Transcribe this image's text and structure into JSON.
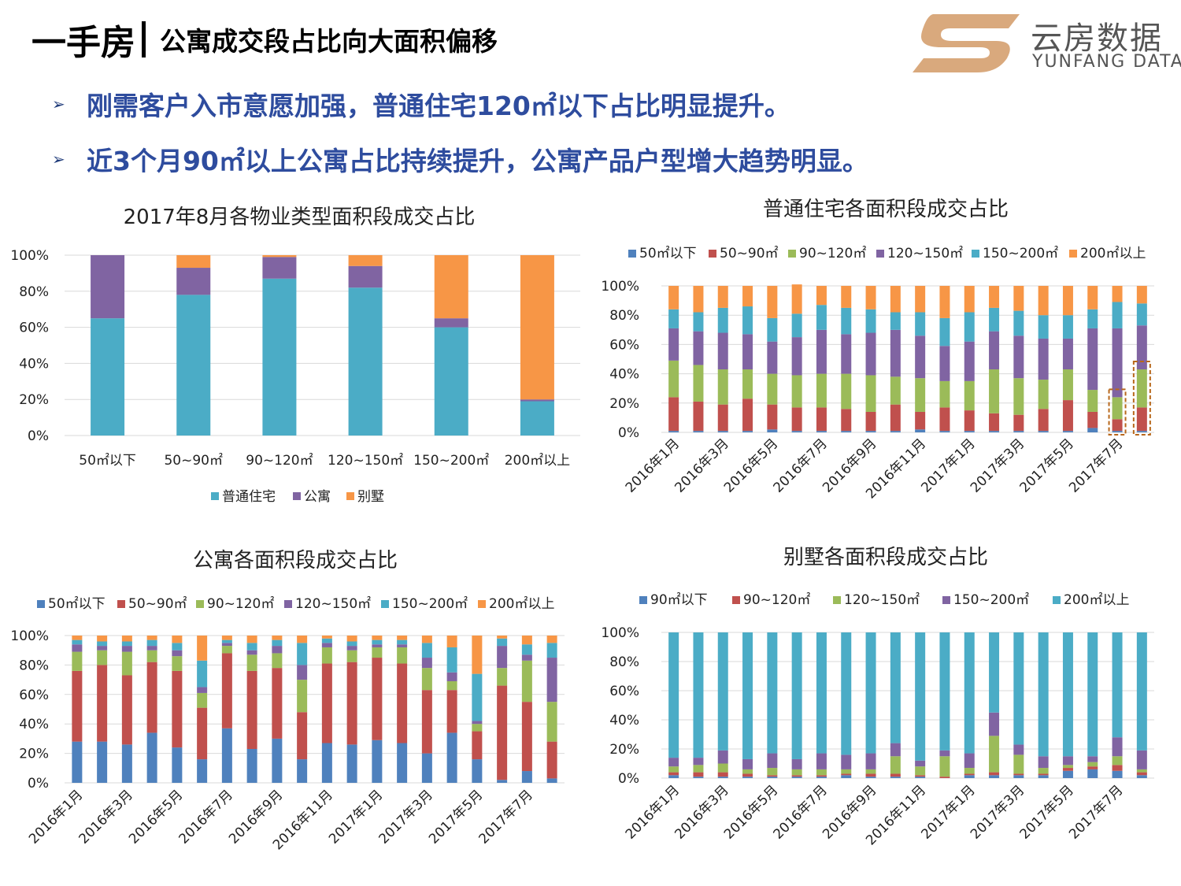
{
  "header": {
    "title_big": "一手房",
    "title_sub": "公寓成交段占比向大面积偏移"
  },
  "logo": {
    "cn": "云房数据",
    "en": "YUNFANG DATA",
    "icon": "yunfang-s-logo-icon",
    "color": "#D9A97D"
  },
  "bullets": [
    {
      "icon": "arrow-bullet-icon",
      "text": "刚需客户入市意愿加强，普通住宅120㎡以下占比明显提升。"
    },
    {
      "icon": "arrow-bullet-icon",
      "text": "近3个月90㎡以上公寓占比持续提升，公寓产品户型增大趋势明显。"
    }
  ],
  "chart_data": [
    {
      "id": "aug2017",
      "type": "bar",
      "stacked": true,
      "title": "2017年8月各物业类型面积段成交占比",
      "categories": [
        "50㎡以下",
        "50~90㎡",
        "90~120㎡",
        "120~150㎡",
        "150~200㎡",
        "200㎡以上"
      ],
      "series": [
        {
          "name": "普通住宅",
          "color": "#4BACC6",
          "values": [
            65,
            78,
            87,
            82,
            60,
            19
          ]
        },
        {
          "name": "公寓",
          "color": "#8064A2",
          "values": [
            35,
            15,
            12,
            12,
            5,
            1
          ]
        },
        {
          "name": "别墅",
          "color": "#F79646",
          "values": [
            0,
            7,
            1,
            6,
            35,
            80
          ]
        }
      ],
      "yticks": [
        "0%",
        "20%",
        "40%",
        "60%",
        "80%",
        "100%"
      ],
      "ylim": [
        0,
        100
      ],
      "legend": "bottom",
      "grid": true
    },
    {
      "id": "residential",
      "type": "bar",
      "stacked": true,
      "title": "普通住宅各面积段成交占比",
      "x": [
        "2016年1月",
        "2016年2月",
        "2016年3月",
        "2016年4月",
        "2016年5月",
        "2016年6月",
        "2016年7月",
        "2016年8月",
        "2016年9月",
        "2016年10月",
        "2016年11月",
        "2016年12月",
        "2017年1月",
        "2017年2月",
        "2017年3月",
        "2017年4月",
        "2017年5月",
        "2017年6月",
        "2017年7月",
        "2017年8月"
      ],
      "xticks": [
        "2016年1月",
        "2016年3月",
        "2016年5月",
        "2016年7月",
        "2016年9月",
        "2016年11月",
        "2017年1月",
        "2017年3月",
        "2017年5月",
        "2017年7月"
      ],
      "series": [
        {
          "name": "50㎡以下",
          "color": "#4F81BD",
          "values": [
            1,
            1,
            1,
            1,
            2,
            1,
            1,
            1,
            1,
            1,
            2,
            1,
            1,
            1,
            1,
            1,
            1,
            3,
            1,
            1
          ]
        },
        {
          "name": "50~90㎡",
          "color": "#C0504D",
          "values": [
            23,
            20,
            18,
            22,
            17,
            16,
            16,
            15,
            13,
            18,
            12,
            16,
            14,
            12,
            11,
            15,
            21,
            11,
            8,
            16
          ]
        },
        {
          "name": "90~120㎡",
          "color": "#9BBB59",
          "values": [
            25,
            25,
            24,
            20,
            21,
            22,
            23,
            24,
            25,
            19,
            23,
            18,
            20,
            30,
            25,
            20,
            21,
            15,
            15,
            26
          ]
        },
        {
          "name": "120~150㎡",
          "color": "#8064A2",
          "values": [
            22,
            23,
            25,
            24,
            22,
            26,
            30,
            27,
            29,
            32,
            29,
            24,
            27,
            26,
            29,
            28,
            21,
            42,
            47,
            30
          ]
        },
        {
          "name": "150~200㎡",
          "color": "#4BACC6",
          "values": [
            13,
            13,
            17,
            19,
            16,
            16,
            17,
            18,
            16,
            12,
            16,
            19,
            20,
            16,
            17,
            16,
            16,
            13,
            18,
            15
          ]
        },
        {
          "name": "200㎡以上",
          "color": "#F79646",
          "values": [
            16,
            18,
            15,
            14,
            22,
            20,
            13,
            15,
            16,
            18,
            18,
            22,
            18,
            15,
            17,
            20,
            20,
            16,
            11,
            12
          ]
        }
      ],
      "yticks": [
        "0%",
        "20%",
        "40%",
        "60%",
        "80%",
        "100%"
      ],
      "ylim": [
        0,
        100
      ],
      "legend": "top",
      "highlight": [
        "2017年7月",
        "2017年8月"
      ],
      "highlight_color": "#B8671B"
    },
    {
      "id": "apartment",
      "type": "bar",
      "stacked": true,
      "title": "公寓各面积段成交占比",
      "x": [
        "2016年1月",
        "2016年2月",
        "2016年3月",
        "2016年4月",
        "2016年5月",
        "2016年6月",
        "2016年7月",
        "2016年8月",
        "2016年9月",
        "2016年10月",
        "2016年11月",
        "2016年12月",
        "2017年1月",
        "2017年2月",
        "2017年3月",
        "2017年4月",
        "2017年5月",
        "2017年6月",
        "2017年7月",
        "2017年8月"
      ],
      "xticks": [
        "2016年1月",
        "2016年3月",
        "2016年5月",
        "2016年7月",
        "2016年9月",
        "2016年11月",
        "2017年1月",
        "2017年3月",
        "2017年5月",
        "2017年7月"
      ],
      "series": [
        {
          "name": "50㎡以下",
          "color": "#4F81BD",
          "values": [
            28,
            28,
            26,
            34,
            24,
            16,
            37,
            23,
            30,
            16,
            27,
            26,
            29,
            27,
            20,
            34,
            16,
            2,
            8,
            3
          ]
        },
        {
          "name": "50~90㎡",
          "color": "#C0504D",
          "values": [
            48,
            52,
            47,
            48,
            52,
            35,
            51,
            53,
            48,
            32,
            54,
            56,
            56,
            54,
            43,
            29,
            19,
            64,
            47,
            25
          ]
        },
        {
          "name": "90~120㎡",
          "color": "#9BBB59",
          "values": [
            13,
            10,
            16,
            8,
            10,
            10,
            5,
            11,
            10,
            22,
            11,
            8,
            7,
            11,
            15,
            6,
            5,
            12,
            28,
            27
          ]
        },
        {
          "name": "120~150㎡",
          "color": "#8064A2",
          "values": [
            5,
            3,
            4,
            3,
            4,
            4,
            2,
            3,
            5,
            10,
            3,
            3,
            2,
            2,
            7,
            6,
            2,
            15,
            4,
            30
          ]
        },
        {
          "name": "150~200㎡",
          "color": "#4BACC6",
          "values": [
            3,
            3,
            3,
            4,
            5,
            18,
            2,
            5,
            4,
            15,
            3,
            3,
            3,
            3,
            10,
            17,
            32,
            5,
            7,
            10
          ]
        },
        {
          "name": "200㎡以上",
          "color": "#F79646",
          "values": [
            3,
            4,
            4,
            3,
            5,
            17,
            3,
            5,
            3,
            5,
            2,
            4,
            3,
            3,
            5,
            8,
            26,
            2,
            6,
            5
          ]
        }
      ],
      "yticks": [
        "0%",
        "20%",
        "40%",
        "60%",
        "80%",
        "100%"
      ],
      "ylim": [
        0,
        100
      ],
      "legend": "top"
    },
    {
      "id": "villa",
      "type": "bar",
      "stacked": true,
      "title": "别墅各面积段成交占比",
      "x": [
        "2016年1月",
        "2016年2月",
        "2016年3月",
        "2016年4月",
        "2016年5月",
        "2016年6月",
        "2016年7月",
        "2016年8月",
        "2016年9月",
        "2016年10月",
        "2016年11月",
        "2016年12月",
        "2017年1月",
        "2017年2月",
        "2017年3月",
        "2017年4月",
        "2017年5月",
        "2017年6月",
        "2017年7月",
        "2017年8月"
      ],
      "xticks": [
        "2016年1月",
        "2016年3月",
        "2016年5月",
        "2016年7月",
        "2016年9月",
        "2016年11月",
        "2017年1月",
        "2017年3月",
        "2017年5月",
        "2017年7月"
      ],
      "series": [
        {
          "name": "90㎡以下",
          "color": "#4F81BD",
          "values": [
            2,
            1,
            1,
            1,
            1,
            1,
            1,
            2,
            1,
            1,
            1,
            0,
            2,
            2,
            2,
            2,
            5,
            6,
            5,
            2
          ]
        },
        {
          "name": "90~120㎡",
          "color": "#C0504D",
          "values": [
            2,
            3,
            3,
            2,
            1,
            1,
            1,
            1,
            2,
            2,
            1,
            1,
            1,
            2,
            1,
            1,
            2,
            2,
            4,
            2
          ]
        },
        {
          "name": "120~150㎡",
          "color": "#9BBB59",
          "values": [
            4,
            5,
            6,
            3,
            5,
            4,
            4,
            3,
            3,
            12,
            6,
            14,
            4,
            25,
            13,
            4,
            2,
            3,
            6,
            2
          ]
        },
        {
          "name": "150~200㎡",
          "color": "#8064A2",
          "values": [
            6,
            5,
            9,
            7,
            10,
            7,
            11,
            10,
            11,
            9,
            4,
            4,
            10,
            16,
            7,
            8,
            6,
            4,
            13,
            13
          ]
        },
        {
          "name": "200㎡以上",
          "color": "#4BACC6",
          "values": [
            86,
            86,
            81,
            87,
            83,
            87,
            83,
            84,
            83,
            76,
            88,
            81,
            83,
            55,
            77,
            85,
            85,
            85,
            72,
            81
          ]
        }
      ],
      "yticks": [
        "0%",
        "20%",
        "40%",
        "60%",
        "80%",
        "100%"
      ],
      "ylim": [
        0,
        100
      ],
      "legend": "top"
    }
  ]
}
